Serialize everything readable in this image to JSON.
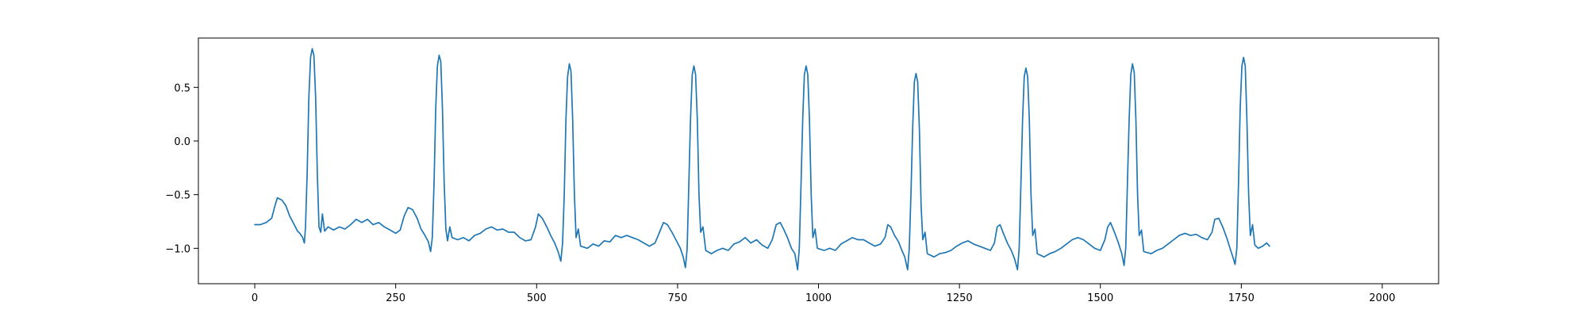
{
  "chart_data": {
    "type": "line",
    "title": "",
    "xlabel": "",
    "ylabel": "",
    "xlim": [
      -100,
      2100
    ],
    "ylim": [
      -1.33,
      0.96
    ],
    "grid": false,
    "legend": "none",
    "x_ticks": [
      {
        "value": 0,
        "label": "0"
      },
      {
        "value": 250,
        "label": "250"
      },
      {
        "value": 500,
        "label": "500"
      },
      {
        "value": 750,
        "label": "750"
      },
      {
        "value": 1000,
        "label": "1000"
      },
      {
        "value": 1250,
        "label": "1250"
      },
      {
        "value": 1500,
        "label": "1500"
      },
      {
        "value": 1750,
        "label": "1750"
      },
      {
        "value": 2000,
        "label": "2000"
      }
    ],
    "y_ticks": [
      {
        "value": 0.5,
        "label": "0.5"
      },
      {
        "value": 0.0,
        "label": "0.0"
      },
      {
        "value": -0.5,
        "label": "−0.5"
      },
      {
        "value": -1.0,
        "label": "−1.0"
      }
    ],
    "series": [
      {
        "color": "#1f77b4",
        "points": [
          [
            0,
            -0.78
          ],
          [
            10,
            -0.78
          ],
          [
            20,
            -0.76
          ],
          [
            30,
            -0.72
          ],
          [
            35,
            -0.62
          ],
          [
            40,
            -0.53
          ],
          [
            48,
            -0.55
          ],
          [
            55,
            -0.6
          ],
          [
            62,
            -0.7
          ],
          [
            70,
            -0.78
          ],
          [
            76,
            -0.84
          ],
          [
            80,
            -0.86
          ],
          [
            85,
            -0.9
          ],
          [
            88,
            -0.95
          ],
          [
            90,
            -0.8
          ],
          [
            93,
            -0.3
          ],
          [
            96,
            0.4
          ],
          [
            99,
            0.78
          ],
          [
            102,
            0.86
          ],
          [
            105,
            0.8
          ],
          [
            108,
            0.4
          ],
          [
            111,
            -0.3
          ],
          [
            114,
            -0.8
          ],
          [
            117,
            -0.85
          ],
          [
            120,
            -0.68
          ],
          [
            124,
            -0.84
          ],
          [
            130,
            -0.8
          ],
          [
            140,
            -0.83
          ],
          [
            150,
            -0.8
          ],
          [
            160,
            -0.82
          ],
          [
            170,
            -0.78
          ],
          [
            180,
            -0.73
          ],
          [
            190,
            -0.76
          ],
          [
            200,
            -0.73
          ],
          [
            210,
            -0.78
          ],
          [
            220,
            -0.76
          ],
          [
            230,
            -0.8
          ],
          [
            240,
            -0.83
          ],
          [
            250,
            -0.86
          ],
          [
            258,
            -0.83
          ],
          [
            265,
            -0.7
          ],
          [
            272,
            -0.62
          ],
          [
            280,
            -0.64
          ],
          [
            288,
            -0.72
          ],
          [
            295,
            -0.82
          ],
          [
            302,
            -0.88
          ],
          [
            308,
            -0.94
          ],
          [
            312,
            -1.03
          ],
          [
            315,
            -0.9
          ],
          [
            318,
            -0.4
          ],
          [
            321,
            0.3
          ],
          [
            324,
            0.7
          ],
          [
            327,
            0.8
          ],
          [
            330,
            0.74
          ],
          [
            333,
            0.3
          ],
          [
            336,
            -0.4
          ],
          [
            339,
            -0.82
          ],
          [
            342,
            -0.93
          ],
          [
            346,
            -0.8
          ],
          [
            350,
            -0.9
          ],
          [
            360,
            -0.92
          ],
          [
            370,
            -0.9
          ],
          [
            380,
            -0.93
          ],
          [
            390,
            -0.88
          ],
          [
            400,
            -0.86
          ],
          [
            410,
            -0.82
          ],
          [
            420,
            -0.8
          ],
          [
            430,
            -0.83
          ],
          [
            440,
            -0.82
          ],
          [
            450,
            -0.85
          ],
          [
            460,
            -0.85
          ],
          [
            470,
            -0.9
          ],
          [
            480,
            -0.93
          ],
          [
            490,
            -0.92
          ],
          [
            498,
            -0.8
          ],
          [
            503,
            -0.68
          ],
          [
            510,
            -0.72
          ],
          [
            518,
            -0.8
          ],
          [
            525,
            -0.88
          ],
          [
            532,
            -0.95
          ],
          [
            538,
            -1.03
          ],
          [
            543,
            -1.12
          ],
          [
            546,
            -0.95
          ],
          [
            549,
            -0.5
          ],
          [
            552,
            0.2
          ],
          [
            555,
            0.6
          ],
          [
            558,
            0.72
          ],
          [
            561,
            0.65
          ],
          [
            564,
            0.2
          ],
          [
            567,
            -0.5
          ],
          [
            570,
            -0.9
          ],
          [
            574,
            -0.82
          ],
          [
            578,
            -0.98
          ],
          [
            590,
            -1.0
          ],
          [
            600,
            -0.96
          ],
          [
            610,
            -0.98
          ],
          [
            620,
            -0.93
          ],
          [
            630,
            -0.94
          ],
          [
            640,
            -0.88
          ],
          [
            650,
            -0.9
          ],
          [
            660,
            -0.88
          ],
          [
            670,
            -0.9
          ],
          [
            680,
            -0.92
          ],
          [
            690,
            -0.95
          ],
          [
            700,
            -0.98
          ],
          [
            710,
            -0.95
          ],
          [
            718,
            -0.85
          ],
          [
            725,
            -0.76
          ],
          [
            732,
            -0.78
          ],
          [
            740,
            -0.85
          ],
          [
            748,
            -0.93
          ],
          [
            755,
            -1.0
          ],
          [
            760,
            -1.08
          ],
          [
            764,
            -1.18
          ],
          [
            767,
            -1.0
          ],
          [
            770,
            -0.4
          ],
          [
            773,
            0.2
          ],
          [
            776,
            0.62
          ],
          [
            779,
            0.7
          ],
          [
            782,
            0.62
          ],
          [
            785,
            0.2
          ],
          [
            788,
            -0.5
          ],
          [
            791,
            -0.85
          ],
          [
            795,
            -0.8
          ],
          [
            800,
            -1.02
          ],
          [
            810,
            -1.05
          ],
          [
            820,
            -1.02
          ],
          [
            830,
            -1.0
          ],
          [
            840,
            -1.02
          ],
          [
            850,
            -0.96
          ],
          [
            860,
            -0.94
          ],
          [
            870,
            -0.9
          ],
          [
            880,
            -0.95
          ],
          [
            890,
            -0.92
          ],
          [
            900,
            -0.97
          ],
          [
            910,
            -1.0
          ],
          [
            918,
            -0.92
          ],
          [
            925,
            -0.78
          ],
          [
            932,
            -0.76
          ],
          [
            938,
            -0.82
          ],
          [
            945,
            -0.9
          ],
          [
            952,
            -1.0
          ],
          [
            958,
            -1.05
          ],
          [
            963,
            -1.2
          ],
          [
            966,
            -1.0
          ],
          [
            969,
            -0.4
          ],
          [
            972,
            0.2
          ],
          [
            975,
            0.62
          ],
          [
            978,
            0.7
          ],
          [
            981,
            0.62
          ],
          [
            984,
            0.2
          ],
          [
            987,
            -0.5
          ],
          [
            990,
            -0.9
          ],
          [
            994,
            -0.82
          ],
          [
            998,
            -1.0
          ],
          [
            1010,
            -1.02
          ],
          [
            1020,
            -1.0
          ],
          [
            1030,
            -1.02
          ],
          [
            1040,
            -0.96
          ],
          [
            1050,
            -0.93
          ],
          [
            1060,
            -0.9
          ],
          [
            1070,
            -0.92
          ],
          [
            1080,
            -0.92
          ],
          [
            1090,
            -0.95
          ],
          [
            1100,
            -0.98
          ],
          [
            1110,
            -0.96
          ],
          [
            1118,
            -0.9
          ],
          [
            1123,
            -0.78
          ],
          [
            1128,
            -0.8
          ],
          [
            1135,
            -0.88
          ],
          [
            1142,
            -0.94
          ],
          [
            1148,
            -1.02
          ],
          [
            1153,
            -1.08
          ],
          [
            1158,
            -1.2
          ],
          [
            1161,
            -1.0
          ],
          [
            1164,
            -0.5
          ],
          [
            1167,
            0.1
          ],
          [
            1170,
            0.55
          ],
          [
            1173,
            0.63
          ],
          [
            1176,
            0.55
          ],
          [
            1179,
            0.1
          ],
          [
            1182,
            -0.6
          ],
          [
            1185,
            -0.92
          ],
          [
            1189,
            -0.85
          ],
          [
            1193,
            -1.05
          ],
          [
            1205,
            -1.08
          ],
          [
            1215,
            -1.05
          ],
          [
            1225,
            -1.04
          ],
          [
            1235,
            -1.02
          ],
          [
            1245,
            -0.98
          ],
          [
            1255,
            -0.95
          ],
          [
            1265,
            -0.93
          ],
          [
            1275,
            -0.96
          ],
          [
            1285,
            -0.98
          ],
          [
            1295,
            -1.0
          ],
          [
            1305,
            -1.02
          ],
          [
            1312,
            -0.95
          ],
          [
            1317,
            -0.8
          ],
          [
            1322,
            -0.78
          ],
          [
            1328,
            -0.86
          ],
          [
            1335,
            -0.95
          ],
          [
            1342,
            -1.02
          ],
          [
            1348,
            -1.1
          ],
          [
            1353,
            -1.2
          ],
          [
            1356,
            -1.0
          ],
          [
            1359,
            -0.4
          ],
          [
            1362,
            0.2
          ],
          [
            1365,
            0.6
          ],
          [
            1368,
            0.68
          ],
          [
            1371,
            0.6
          ],
          [
            1374,
            0.2
          ],
          [
            1377,
            -0.5
          ],
          [
            1380,
            -0.88
          ],
          [
            1384,
            -0.82
          ],
          [
            1388,
            -1.05
          ],
          [
            1400,
            -1.08
          ],
          [
            1410,
            -1.05
          ],
          [
            1420,
            -1.03
          ],
          [
            1430,
            -1.0
          ],
          [
            1440,
            -0.96
          ],
          [
            1450,
            -0.92
          ],
          [
            1460,
            -0.9
          ],
          [
            1470,
            -0.92
          ],
          [
            1480,
            -0.96
          ],
          [
            1490,
            -1.0
          ],
          [
            1500,
            -1.02
          ],
          [
            1508,
            -0.92
          ],
          [
            1513,
            -0.8
          ],
          [
            1518,
            -0.76
          ],
          [
            1525,
            -0.85
          ],
          [
            1532,
            -0.95
          ],
          [
            1538,
            -1.05
          ],
          [
            1542,
            -1.16
          ],
          [
            1545,
            -1.0
          ],
          [
            1548,
            -0.4
          ],
          [
            1551,
            0.2
          ],
          [
            1554,
            0.62
          ],
          [
            1557,
            0.72
          ],
          [
            1560,
            0.64
          ],
          [
            1563,
            0.2
          ],
          [
            1566,
            -0.5
          ],
          [
            1569,
            -0.88
          ],
          [
            1573,
            -0.83
          ],
          [
            1577,
            -1.03
          ],
          [
            1590,
            -1.05
          ],
          [
            1600,
            -1.02
          ],
          [
            1610,
            -1.0
          ],
          [
            1620,
            -0.96
          ],
          [
            1630,
            -0.92
          ],
          [
            1640,
            -0.88
          ],
          [
            1650,
            -0.86
          ],
          [
            1660,
            -0.88
          ],
          [
            1670,
            -0.87
          ],
          [
            1680,
            -0.9
          ],
          [
            1690,
            -0.92
          ],
          [
            1698,
            -0.85
          ],
          [
            1703,
            -0.73
          ],
          [
            1710,
            -0.72
          ],
          [
            1717,
            -0.8
          ],
          [
            1724,
            -0.9
          ],
          [
            1730,
            -1.0
          ],
          [
            1735,
            -1.08
          ],
          [
            1739,
            -1.15
          ],
          [
            1742,
            -1.0
          ],
          [
            1745,
            -0.4
          ],
          [
            1748,
            0.3
          ],
          [
            1751,
            0.7
          ],
          [
            1754,
            0.78
          ],
          [
            1757,
            0.7
          ],
          [
            1760,
            0.2
          ],
          [
            1763,
            -0.5
          ],
          [
            1766,
            -0.88
          ],
          [
            1770,
            -0.78
          ],
          [
            1774,
            -0.97
          ],
          [
            1780,
            -1.0
          ],
          [
            1788,
            -0.98
          ],
          [
            1795,
            -0.95
          ],
          [
            1800,
            -0.98
          ]
        ]
      }
    ]
  }
}
